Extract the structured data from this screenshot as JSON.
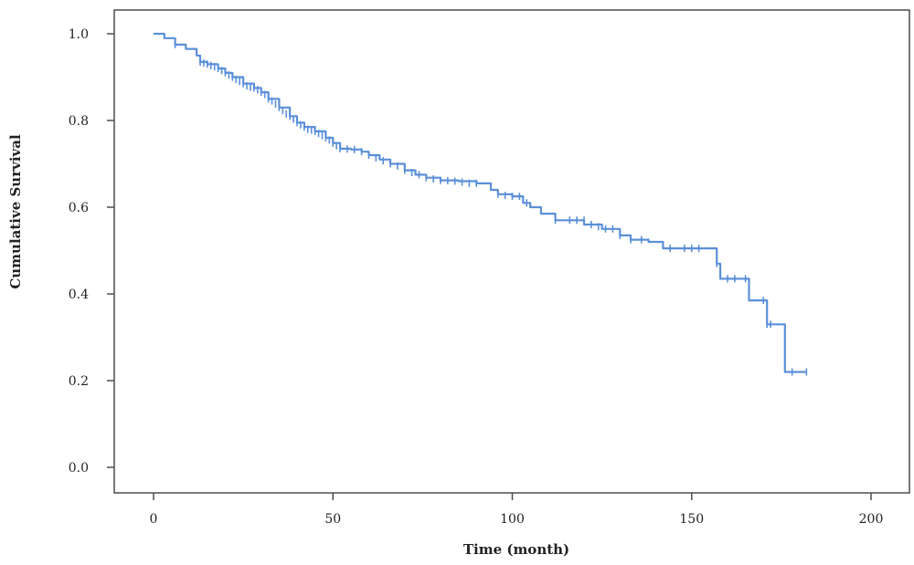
{
  "chart_data": {
    "type": "line",
    "title": "",
    "xlabel": "Time (month)",
    "ylabel": "Cumulative Survival",
    "xlim": [
      0,
      200
    ],
    "ylim": [
      0.0,
      1.0
    ],
    "x_ticks": [
      0,
      50,
      100,
      150,
      200
    ],
    "y_ticks": [
      0.0,
      0.2,
      0.4,
      0.6,
      0.8,
      1.0
    ],
    "x_tick_labels": [
      "0",
      "50",
      "100",
      "150",
      "200"
    ],
    "y_tick_labels": [
      "0.0",
      "0.2",
      "0.4",
      "0.6",
      "0.8",
      "1.0"
    ],
    "grid": false,
    "line_color": "#5b8fd8",
    "series": [
      {
        "name": "",
        "step": true,
        "x": [
          0,
          3,
          6,
          9,
          12,
          13,
          15,
          18,
          20,
          22,
          25,
          28,
          30,
          32,
          35,
          38,
          40,
          42,
          45,
          48,
          50,
          52,
          55,
          58,
          60,
          63,
          66,
          70,
          73,
          76,
          80,
          85,
          90,
          94,
          96,
          100,
          103,
          105,
          108,
          112,
          120,
          125,
          130,
          133,
          138,
          142,
          148,
          155,
          157,
          158,
          163,
          166,
          170,
          171,
          175,
          176,
          182
        ],
        "y": [
          1.0,
          0.99,
          0.975,
          0.965,
          0.95,
          0.935,
          0.93,
          0.92,
          0.91,
          0.9,
          0.885,
          0.875,
          0.865,
          0.85,
          0.83,
          0.81,
          0.795,
          0.785,
          0.775,
          0.76,
          0.748,
          0.735,
          0.733,
          0.728,
          0.72,
          0.71,
          0.7,
          0.685,
          0.675,
          0.668,
          0.662,
          0.66,
          0.655,
          0.64,
          0.63,
          0.625,
          0.61,
          0.6,
          0.585,
          0.57,
          0.56,
          0.55,
          0.535,
          0.525,
          0.52,
          0.505,
          0.505,
          0.505,
          0.47,
          0.435,
          0.435,
          0.385,
          0.385,
          0.33,
          0.33,
          0.22,
          0.22
        ]
      }
    ],
    "censor_marks": {
      "x": [
        6,
        13,
        14,
        15,
        16,
        17,
        18,
        19,
        20,
        21,
        22,
        23,
        24,
        25,
        26,
        27,
        28,
        29,
        30,
        31,
        32,
        33,
        34,
        35,
        36,
        37,
        38,
        39,
        40,
        41,
        42,
        43,
        44,
        45,
        46,
        47,
        48,
        49,
        50,
        51,
        52,
        54,
        56,
        58,
        60,
        62,
        64,
        66,
        68,
        70,
        72,
        74,
        76,
        78,
        80,
        82,
        84,
        86,
        88,
        90,
        96,
        98,
        100,
        102,
        104,
        112,
        116,
        118,
        120,
        122,
        124,
        126,
        128,
        130,
        133,
        136,
        144,
        148,
        150,
        152,
        157,
        160,
        162,
        165,
        170,
        171,
        172,
        178,
        182
      ],
      "y": [
        0.975,
        0.935,
        0.933,
        0.93,
        0.927,
        0.924,
        0.92,
        0.915,
        0.91,
        0.905,
        0.9,
        0.895,
        0.89,
        0.885,
        0.88,
        0.877,
        0.875,
        0.871,
        0.865,
        0.86,
        0.85,
        0.845,
        0.838,
        0.83,
        0.823,
        0.815,
        0.81,
        0.803,
        0.795,
        0.79,
        0.785,
        0.78,
        0.778,
        0.775,
        0.77,
        0.765,
        0.76,
        0.755,
        0.748,
        0.742,
        0.735,
        0.734,
        0.733,
        0.728,
        0.72,
        0.714,
        0.707,
        0.7,
        0.695,
        0.685,
        0.68,
        0.675,
        0.668,
        0.665,
        0.662,
        0.661,
        0.66,
        0.658,
        0.655,
        0.655,
        0.63,
        0.627,
        0.625,
        0.625,
        0.61,
        0.57,
        0.57,
        0.57,
        0.57,
        0.56,
        0.555,
        0.55,
        0.55,
        0.535,
        0.525,
        0.525,
        0.505,
        0.505,
        0.505,
        0.505,
        0.47,
        0.435,
        0.435,
        0.435,
        0.385,
        0.33,
        0.33,
        0.22,
        0.22
      ]
    }
  }
}
